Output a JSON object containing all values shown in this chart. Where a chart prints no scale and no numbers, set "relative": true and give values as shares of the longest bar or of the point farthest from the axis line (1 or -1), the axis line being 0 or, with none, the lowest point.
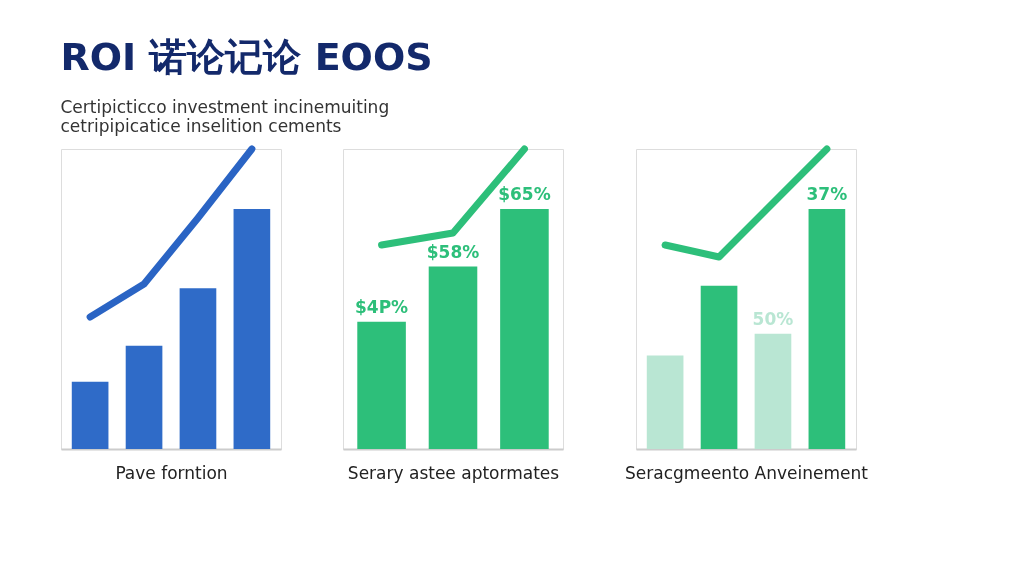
{
  "chart_data": [
    {
      "type": "bar",
      "title": "ROI 诺论记论 EOOS",
      "subtitle": [
        "Certipicticco investment incinemuiting",
        "cetripipicatice inselition cements"
      ],
      "xlabel": "Pave forntion",
      "relative": true,
      "categories": [
        null,
        null,
        null,
        null
      ],
      "color": "#2f6bc8",
      "values": [
        0.28,
        0.43,
        0.67,
        1.0
      ]
    },
    {
      "type": "line",
      "relative": true,
      "categories": [
        null,
        null,
        null,
        null
      ],
      "color": "#2a64c4",
      "values": [
        0.44,
        0.55,
        0.77,
        1.0
      ]
    },
    {
      "type": "bar",
      "xlabel": "Serary astee aptormates",
      "relative": true,
      "categories": [
        null,
        null,
        null
      ],
      "color": "#2dbf7a",
      "values": [
        0.53,
        0.76,
        1.0
      ],
      "annotations": [
        {
          "text": "$4P%",
          "y": 0.53
        },
        {
          "text": "$58%",
          "y": 0.76
        },
        {
          "text": "$65%",
          "y": 1.0
        }
      ]
    },
    {
      "type": "line",
      "relative": true,
      "categories": [
        null,
        null,
        null
      ],
      "color": "#2dbf7a",
      "values": [
        0.68,
        0.72,
        1.0
      ]
    },
    {
      "type": "bar",
      "xlabel": "Seracgmeento Anveinement",
      "relative": true,
      "categories": [
        null,
        null,
        null,
        null
      ],
      "colors": [
        "#b9e6d3",
        "#2dbf7a",
        "#b9e6d3",
        "#2dbf7a"
      ],
      "values": [
        0.39,
        0.68,
        0.48,
        1.0
      ],
      "annotations": [
        {
          "text": "50%",
          "y": 0.48
        },
        {
          "text": "37%",
          "y": 1.0
        }
      ]
    },
    {
      "type": "line",
      "relative": true,
      "categories": [
        null,
        null,
        null,
        null
      ],
      "color": "#2dbf7a",
      "values": [
        0.68,
        0.64,
        0.82,
        1.0
      ]
    }
  ]
}
